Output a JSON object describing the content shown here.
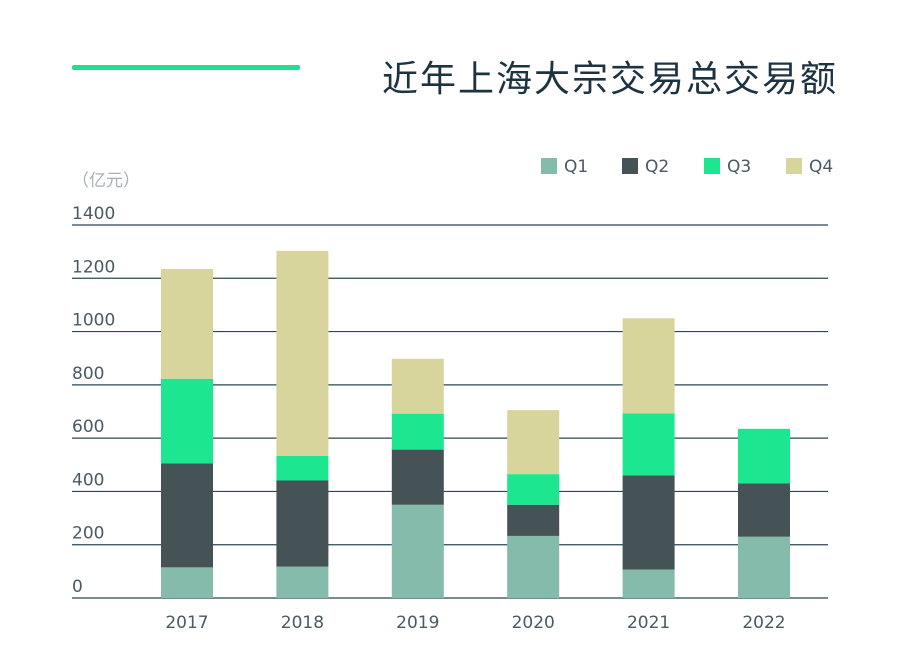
{
  "chart_data": {
    "type": "bar",
    "stacked": true,
    "title": "近年上海大宗交易总交易额",
    "ylabel": "（亿元）",
    "xlabel": "",
    "ylim": [
      0,
      1400
    ],
    "yticks": [
      0,
      200,
      400,
      600,
      800,
      1000,
      1200,
      1400
    ],
    "categories": [
      "2017",
      "2018",
      "2019",
      "2020",
      "2021",
      "2022"
    ],
    "legend_position": "top-right",
    "series": [
      {
        "name": "Q1",
        "color": "#84bbab",
        "values": [
          115,
          118,
          350,
          233,
          107,
          230
        ]
      },
      {
        "name": "Q2",
        "color": "#455256",
        "values": [
          390,
          323,
          207,
          117,
          353,
          200
        ]
      },
      {
        "name": "Q3",
        "color": "#1ce68f",
        "values": [
          318,
          92,
          135,
          115,
          233,
          205
        ]
      },
      {
        "name": "Q4",
        "color": "#d8d59c",
        "values": [
          412,
          770,
          206,
          240,
          357,
          0
        ]
      }
    ]
  }
}
